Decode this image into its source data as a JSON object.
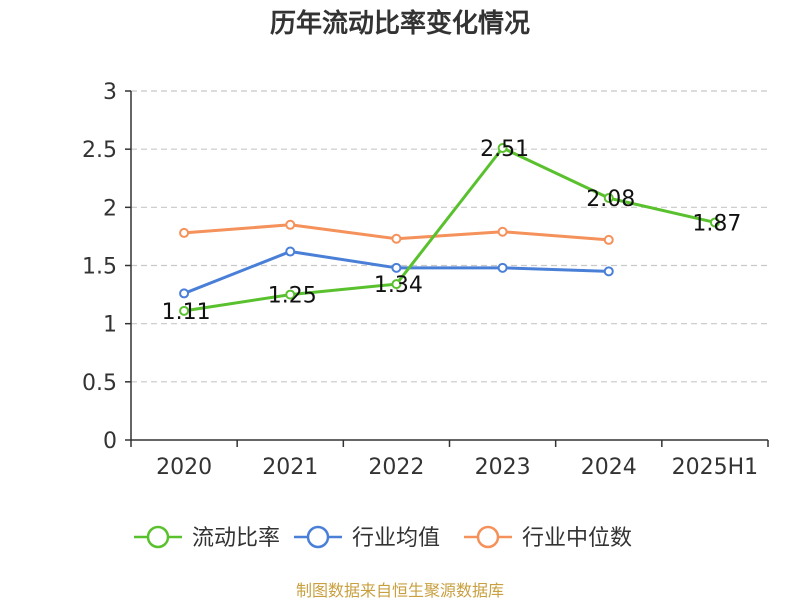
{
  "chart_data": {
    "type": "line",
    "title": "历年流动比率变化情况",
    "categories": [
      "2020",
      "2021",
      "2022",
      "2023",
      "2024",
      "2025H1"
    ],
    "ylim": [
      0,
      3
    ],
    "yticks": [
      "0",
      "0.5",
      "1",
      "1.5",
      "2",
      "2.5",
      "3"
    ],
    "grid": true,
    "legend_position": "bottom",
    "series": [
      {
        "name": "流动比率",
        "color": "#5ac12e",
        "values": [
          1.11,
          1.25,
          1.34,
          2.51,
          2.08,
          1.87
        ],
        "labels": [
          "1.11",
          "1.25",
          "1.34",
          "2.51",
          "2.08",
          "1.87"
        ]
      },
      {
        "name": "行业均值",
        "color": "#4a7fd8",
        "values": [
          1.26,
          1.62,
          1.48,
          1.48,
          1.45,
          null
        ]
      },
      {
        "name": "行业中位数",
        "color": "#f5915a",
        "values": [
          1.78,
          1.85,
          1.73,
          1.79,
          1.72,
          null
        ]
      }
    ]
  },
  "source": "制图数据来自恒生聚源数据库"
}
